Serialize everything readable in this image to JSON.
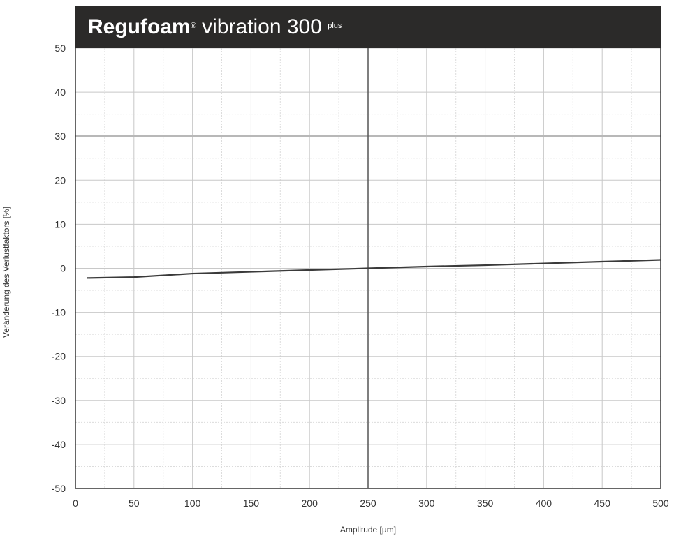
{
  "chart_data": {
    "type": "line",
    "title": "Regufoam",
    "title_registered": "®",
    "title_rest": " vibration 300 ",
    "title_superscript": "plus",
    "xlabel": "Amplitude [µm]",
    "ylabel": "Veränderung des Verlustfaktors [%]",
    "xlim": [
      0,
      500
    ],
    "ylim": [
      -50,
      50
    ],
    "x_ticks": [
      0,
      50,
      100,
      150,
      200,
      250,
      300,
      350,
      400,
      450,
      500
    ],
    "x_tick_labels": [
      "0",
      "50",
      "100",
      "150",
      "200",
      "250",
      "300",
      "350",
      "400",
      "450",
      "500"
    ],
    "y_ticks": [
      50,
      40,
      30,
      20,
      10,
      0,
      -10,
      -20,
      -30,
      -40,
      -50
    ],
    "y_tick_labels": [
      "50",
      "40",
      "30",
      "20",
      "10",
      "0",
      "-10",
      "-20",
      "-30",
      "-40",
      "-50"
    ],
    "grid": true,
    "reference_line_x": 250,
    "highlight_line_y": 30,
    "series": [
      {
        "color": "#3a3a3a",
        "x": [
          10,
          50,
          100,
          150,
          200,
          250,
          300,
          350,
          400,
          450,
          500
        ],
        "y": [
          -2.2,
          -2.0,
          -1.2,
          -0.8,
          -0.4,
          0.0,
          0.4,
          0.7,
          1.1,
          1.5,
          1.9
        ]
      }
    ],
    "colors": {
      "header_bg": "#2b2a29",
      "header_text": "#ffffff",
      "grid_major": "#c8c8c8",
      "grid_minor": "#dcdcdc",
      "axis": "#333333",
      "reference_line": "#555555",
      "highlight_line": "#b8b8b8"
    }
  }
}
